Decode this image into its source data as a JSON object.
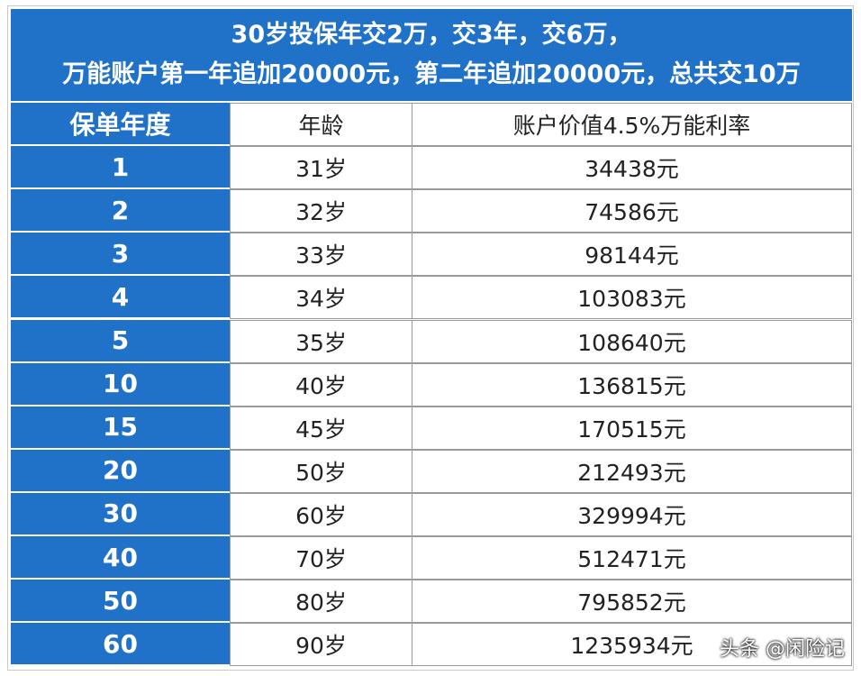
{
  "table": {
    "title": [
      "30岁投保年交2万，交3年，交6万，",
      "万能账户第一年追加20000元，第二年追加20000元，总共交10万"
    ],
    "header": [
      "保单年度",
      "年龄",
      "账户价值4.5%万能利率"
    ],
    "rows": [
      [
        "1",
        "31岁",
        "34438元"
      ],
      [
        "2",
        "32岁",
        "74586元"
      ],
      [
        "3",
        "33岁",
        "98144元"
      ],
      [
        "4",
        "34岁",
        "103083元"
      ],
      [
        "5",
        "35岁",
        "108640元"
      ],
      [
        "10",
        "40岁",
        "136815元"
      ],
      [
        "15",
        "45岁",
        "170515元"
      ],
      [
        "20",
        "50岁",
        "212493元"
      ],
      [
        "30",
        "60岁",
        "329994元"
      ],
      [
        "40",
        "70岁",
        "512471元"
      ],
      [
        "50",
        "80岁",
        "795852元"
      ],
      [
        "60",
        "90岁",
        "1235934元"
      ]
    ]
  },
  "watermark": "头条 @闲险记"
}
